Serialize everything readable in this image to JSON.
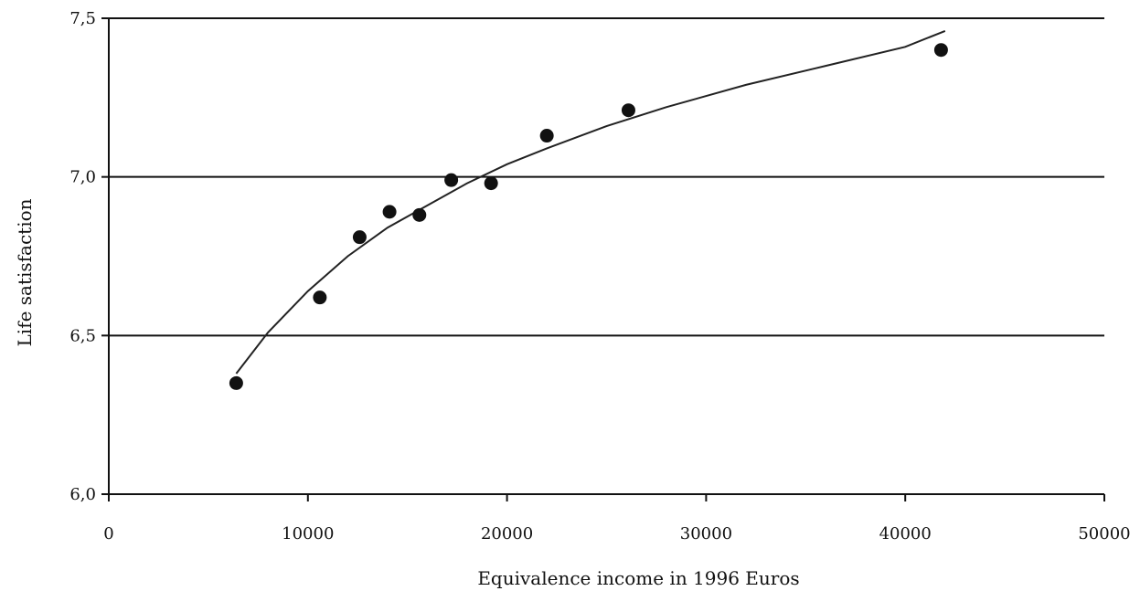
{
  "chart_data": {
    "type": "scatter",
    "xlabel": "Equivalence income in 1996 Euros",
    "ylabel": "Life satisfaction",
    "xlim": [
      0,
      50000
    ],
    "ylim": [
      6.0,
      7.5
    ],
    "x_ticks": [
      0,
      10000,
      20000,
      30000,
      40000,
      50000
    ],
    "x_tick_labels": [
      "0",
      "10000",
      "20000",
      "30000",
      "40000",
      "50000"
    ],
    "y_ticks": [
      6.0,
      6.5,
      7.0,
      7.5
    ],
    "y_tick_labels": [
      "6,0",
      "6,5",
      "7,0",
      "7,5"
    ],
    "grid": {
      "horizontal": true,
      "vertical": false
    },
    "series": [
      {
        "type": "scatter",
        "x": [
          6400,
          10600,
          12600,
          14100,
          15600,
          17200,
          19200,
          22000,
          26100,
          41800
        ],
        "y": [
          6.35,
          6.62,
          6.81,
          6.89,
          6.88,
          6.99,
          6.98,
          7.13,
          7.21,
          7.4
        ]
      },
      {
        "type": "line",
        "fit": "logarithmic",
        "x": [
          6400,
          8000,
          10000,
          12000,
          14000,
          16000,
          18000,
          20000,
          22000,
          25000,
          28000,
          32000,
          36000,
          40000,
          42000
        ],
        "y": [
          6.38,
          6.51,
          6.64,
          6.75,
          6.84,
          6.91,
          6.98,
          7.04,
          7.09,
          7.16,
          7.22,
          7.29,
          7.35,
          7.41,
          7.46
        ]
      }
    ],
    "colors": {
      "marker": "#111111",
      "line": "#222222",
      "grid": "#111111"
    }
  }
}
